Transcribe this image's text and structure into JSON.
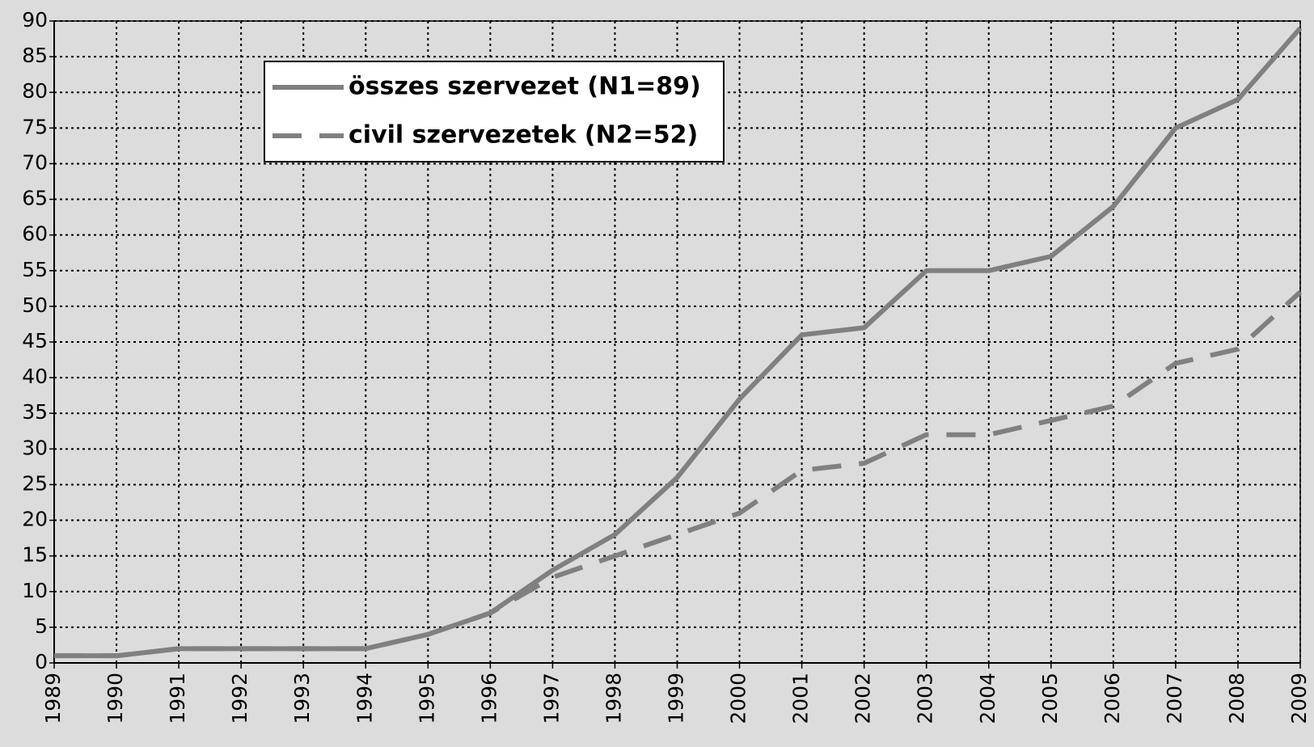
{
  "chart_data": {
    "type": "line",
    "categories": [
      "1989",
      "1990",
      "1991",
      "1992",
      "1993",
      "1994",
      "1995",
      "1996",
      "1997",
      "1998",
      "1999",
      "2000",
      "2001",
      "2002",
      "2003",
      "2004",
      "2005",
      "2006",
      "2007",
      "2008",
      "2009"
    ],
    "series": [
      {
        "name": "összes szervezet (N1=89)",
        "color": "#808080",
        "dash": false,
        "values": [
          1,
          1,
          2,
          2,
          2,
          2,
          4,
          7,
          13,
          18,
          26,
          37,
          46,
          47,
          55,
          55,
          57,
          64,
          75,
          79,
          89
        ]
      },
      {
        "name": "civil szervezetek (N2=52)",
        "color": "#808080",
        "dash": true,
        "values": [
          1,
          1,
          2,
          2,
          2,
          2,
          4,
          7,
          12,
          15,
          18,
          21,
          27,
          28,
          32,
          32,
          34,
          36,
          42,
          44,
          52
        ]
      }
    ],
    "ylim": [
      0,
      90
    ],
    "yticks": [
      0,
      5,
      10,
      15,
      20,
      25,
      30,
      35,
      40,
      45,
      50,
      55,
      60,
      65,
      70,
      75,
      80,
      85,
      90
    ],
    "grid": true,
    "legend": "upper-left"
  }
}
